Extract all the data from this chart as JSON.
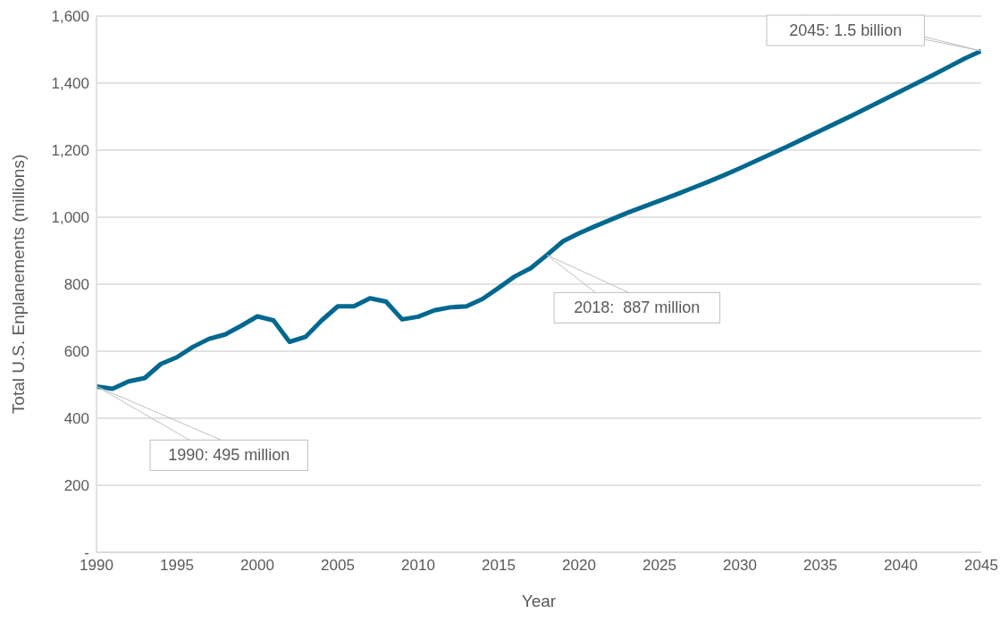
{
  "chart_data": {
    "type": "line",
    "xlabel": "Year",
    "ylabel": "Total U.S. Enplanements (millions)",
    "x": [
      1990,
      1991,
      1992,
      1993,
      1994,
      1995,
      1996,
      1997,
      1998,
      1999,
      2000,
      2001,
      2002,
      2003,
      2004,
      2005,
      2006,
      2007,
      2008,
      2009,
      2010,
      2011,
      2012,
      2013,
      2014,
      2015,
      2016,
      2017,
      2018,
      2019,
      2020,
      2021,
      2022,
      2023,
      2024,
      2025,
      2026,
      2027,
      2028,
      2029,
      2030,
      2031,
      2032,
      2033,
      2034,
      2035,
      2036,
      2037,
      2038,
      2039,
      2040,
      2041,
      2042,
      2043,
      2044,
      2045
    ],
    "series": [
      {
        "color": "#00688f",
        "values": [
          495,
          488,
          510,
          520,
          562,
          582,
          613,
          637,
          650,
          676,
          704,
          692,
          628,
          643,
          692,
          734,
          734,
          758,
          748,
          695,
          703,
          722,
          731,
          734,
          756,
          789,
          823,
          848,
          887,
          928,
          952,
          973,
          993,
          1013,
          1031,
          1049,
          1067,
          1086,
          1105,
          1125,
          1146,
          1168,
          1190,
          1212,
          1235,
          1258,
          1281,
          1304,
          1328,
          1352,
          1376,
          1400,
          1424,
          1449,
          1474,
          1496
        ]
      }
    ],
    "xlim": [
      1990,
      2045
    ],
    "xticks": [
      1990,
      1995,
      2000,
      2005,
      2010,
      2015,
      2020,
      2025,
      2030,
      2035,
      2040,
      2045
    ],
    "ylim": [
      0,
      1600
    ],
    "yticks": [
      {
        "value": 0,
        "label": "-"
      },
      {
        "value": 200,
        "label": "200"
      },
      {
        "value": 400,
        "label": "400"
      },
      {
        "value": 600,
        "label": "600"
      },
      {
        "value": 800,
        "label": "800"
      },
      {
        "value": 1000,
        "label": "1,000"
      },
      {
        "value": 1200,
        "label": "1,200"
      },
      {
        "value": 1400,
        "label": "1,400"
      },
      {
        "value": 1600,
        "label": "1,600"
      }
    ],
    "grid": "y",
    "legend": false,
    "marker": "none",
    "line_style": "solid",
    "annotations": [
      {
        "text": "1990: 495 million",
        "x": 1990,
        "y": 495
      },
      {
        "text": "2018:  887 million",
        "x": 2018,
        "y": 887
      },
      {
        "text": "2045: 1.5 billion",
        "x": 2045,
        "y": 1496
      }
    ]
  }
}
